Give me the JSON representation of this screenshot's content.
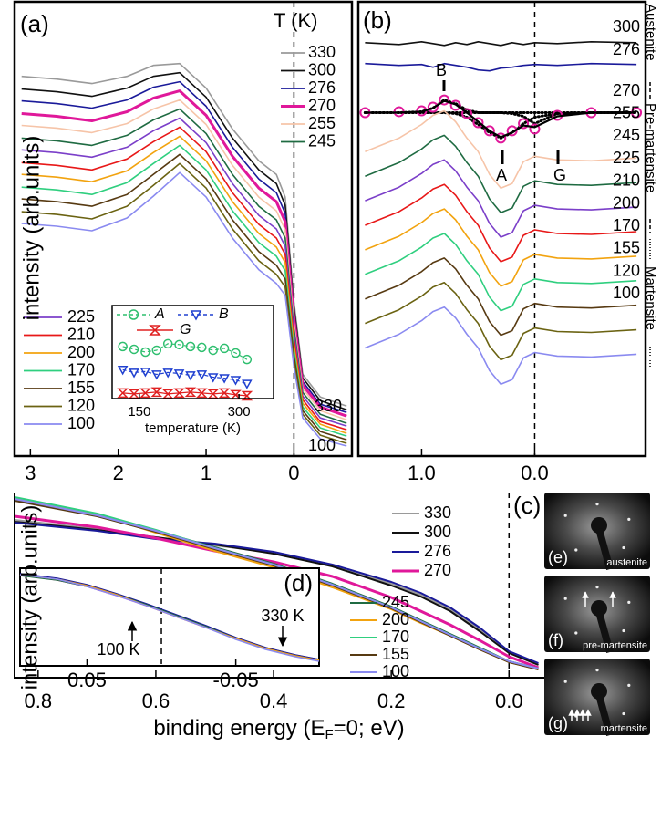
{
  "chart_data": [
    {
      "type": "line",
      "panel_label": "(a)",
      "legend_title": "T (K)",
      "ylabel": "intensity (arb.units)",
      "x": [
        3.1,
        2.7,
        2.3,
        1.9,
        1.6,
        1.3,
        1.0,
        0.7,
        0.4,
        0.2,
        0.1,
        0.0,
        -0.1,
        -0.3,
        -0.6
      ],
      "xlim": [
        3.18,
        -0.66
      ],
      "xticks": [
        3,
        2,
        1,
        0
      ],
      "ylim": [
        0,
        500
      ],
      "vline": 0,
      "series": [
        {
          "name": "330",
          "color": "#9a9a9a",
          "values": [
            418,
            415,
            410,
            418,
            430,
            432,
            405,
            360,
            325,
            310,
            285,
            170,
            90,
            65,
            55
          ]
        },
        {
          "name": "300",
          "color": "#111111",
          "values": [
            404,
            401,
            396,
            405,
            418,
            422,
            395,
            350,
            315,
            300,
            276,
            164,
            86,
            61,
            51
          ]
        },
        {
          "name": "276",
          "color": "#1a1a9a",
          "values": [
            391,
            388,
            383,
            392,
            406,
            412,
            385,
            340,
            305,
            290,
            267,
            158,
            82,
            57,
            48
          ]
        },
        {
          "name": "270",
          "color": "#e0189a",
          "values": [
            377,
            374,
            369,
            379,
            394,
            402,
            375,
            330,
            295,
            280,
            258,
            152,
            78,
            54,
            44
          ]
        },
        {
          "name": "255",
          "color": "#f6c4a8",
          "values": [
            364,
            361,
            356,
            366,
            382,
            392,
            365,
            320,
            285,
            270,
            249,
            146,
            74,
            50,
            40
          ]
        },
        {
          "name": "245",
          "color": "#1f6b42",
          "values": [
            350,
            347,
            342,
            353,
            370,
            382,
            355,
            310,
            275,
            260,
            240,
            140,
            70,
            46,
            36
          ]
        },
        {
          "name": "225",
          "color": "#7b3fc9",
          "values": [
            337,
            334,
            329,
            340,
            358,
            372,
            345,
            300,
            265,
            250,
            231,
            134,
            66,
            42,
            33
          ]
        },
        {
          "name": "210",
          "color": "#e81818",
          "values": [
            323,
            320,
            315,
            327,
            346,
            362,
            335,
            290,
            255,
            240,
            222,
            128,
            62,
            38,
            29
          ]
        },
        {
          "name": "200",
          "color": "#f2a30f",
          "values": [
            310,
            307,
            302,
            314,
            334,
            352,
            325,
            280,
            245,
            230,
            213,
            122,
            58,
            35,
            25
          ]
        },
        {
          "name": "170",
          "color": "#2fcf7f",
          "values": [
            296,
            293,
            288,
            301,
            322,
            342,
            315,
            270,
            235,
            220,
            204,
            116,
            54,
            31,
            22
          ]
        },
        {
          "name": "155",
          "color": "#573a12",
          "values": [
            283,
            280,
            275,
            288,
            310,
            332,
            305,
            260,
            225,
            210,
            195,
            110,
            50,
            27,
            18
          ]
        },
        {
          "name": "120",
          "color": "#6b6312",
          "values": [
            269,
            266,
            261,
            275,
            298,
            322,
            295,
            250,
            215,
            200,
            186,
            104,
            46,
            23,
            14
          ]
        },
        {
          "name": "100",
          "color": "#8a8af0",
          "values": [
            256,
            253,
            248,
            262,
            286,
            312,
            285,
            240,
            205,
            190,
            177,
            98,
            42,
            19,
            11
          ]
        }
      ]
    },
    {
      "type": "scatter",
      "xlabel": "temperature (K)",
      "x": [
        125,
        142,
        159,
        176,
        193,
        210,
        227,
        244,
        261,
        278,
        295,
        312
      ],
      "xlim": [
        109,
        352
      ],
      "xticks": [
        150,
        300
      ],
      "ylim": [
        0,
        10
      ],
      "series": [
        {
          "name": "A",
          "color": "#2fbf6f",
          "marker": "circle",
          "values": [
            5.6,
            5.3,
            5.0,
            5.2,
            5.9,
            5.8,
            5.6,
            5.5,
            5.2,
            5.4,
            4.9,
            4.2
          ]
        },
        {
          "name": "B",
          "color": "#2040d0",
          "marker": "triangle",
          "values": [
            3.1,
            2.8,
            2.9,
            2.6,
            2.8,
            2.7,
            2.5,
            2.6,
            2.3,
            2.2,
            2.0,
            1.6
          ]
        },
        {
          "name": "G",
          "color": "#e02020",
          "marker": "hourglass",
          "values": [
            0.6,
            0.5,
            0.6,
            0.7,
            0.5,
            0.6,
            0.7,
            0.6,
            0.5,
            0.6,
            0.4,
            0.3
          ]
        }
      ]
    },
    {
      "type": "line",
      "panel_label": "(b)",
      "phases": [
        "Austenite",
        "Pre-martensite",
        "Martensite"
      ],
      "annotations": [
        "B",
        "A",
        "G"
      ],
      "x": [
        1.5,
        1.2,
        1.0,
        0.9,
        0.8,
        0.7,
        0.6,
        0.5,
        0.4,
        0.3,
        0.2,
        0.1,
        0.0,
        -0.2,
        -0.5,
        -0.9
      ],
      "xlim": [
        1.56,
        -0.98
      ],
      "xticks": [
        {
          "value": 1,
          "label": "1.0"
        },
        {
          "value": 0,
          "label": "0.0"
        }
      ],
      "ylim": [
        0,
        500
      ],
      "vline": 0,
      "series": [
        {
          "name": "300",
          "color": "#111111",
          "values": [
            455,
            453,
            456,
            454,
            452,
            455,
            453,
            456,
            454,
            452,
            455,
            453,
            455,
            454,
            456,
            455
          ]
        },
        {
          "name": "276",
          "color": "#1a1a9a",
          "values": [
            432,
            430,
            431,
            428,
            432,
            430,
            428,
            425,
            424,
            427,
            428,
            430,
            431,
            430,
            432,
            431
          ]
        },
        {
          "name": "270",
          "color": "#e0189a",
          "marker": "circle",
          "values": [
            378,
            379,
            380,
            384,
            392,
            386,
            377,
            367,
            358,
            350,
            358,
            366,
            360,
            375,
            378,
            378
          ]
        },
        {
          "name": "255",
          "color": "#f6c4a8",
          "values": [
            335,
            350,
            365,
            375,
            380,
            368,
            350,
            335,
            310,
            295,
            300,
            324,
            330,
            326,
            325,
            328
          ]
        },
        {
          "name": "245",
          "color": "#1f6b42",
          "values": [
            308,
            323,
            338,
            348,
            353,
            341,
            323,
            308,
            283,
            268,
            273,
            297,
            303,
            299,
            298,
            301
          ]
        },
        {
          "name": "225",
          "color": "#7b3fc9",
          "values": [
            281,
            296,
            311,
            321,
            326,
            314,
            296,
            281,
            256,
            241,
            246,
            270,
            276,
            272,
            271,
            274
          ]
        },
        {
          "name": "210",
          "color": "#e81818",
          "values": [
            254,
            269,
            284,
            294,
            299,
            287,
            269,
            254,
            229,
            214,
            219,
            243,
            249,
            245,
            244,
            247
          ]
        },
        {
          "name": "200",
          "color": "#f2a30f",
          "values": [
            227,
            242,
            257,
            267,
            272,
            260,
            242,
            227,
            202,
            187,
            192,
            216,
            222,
            218,
            217,
            220
          ]
        },
        {
          "name": "170",
          "color": "#2fcf7f",
          "values": [
            200,
            215,
            230,
            240,
            245,
            233,
            215,
            200,
            175,
            160,
            165,
            189,
            195,
            191,
            190,
            193
          ]
        },
        {
          "name": "155",
          "color": "#573a12",
          "values": [
            173,
            188,
            203,
            213,
            218,
            206,
            188,
            173,
            148,
            133,
            138,
            162,
            168,
            164,
            163,
            166
          ]
        },
        {
          "name": "120",
          "color": "#6b6312",
          "values": [
            146,
            161,
            176,
            186,
            191,
            179,
            161,
            146,
            121,
            106,
            111,
            135,
            141,
            137,
            136,
            139
          ]
        },
        {
          "name": "100",
          "color": "#8a8af0",
          "values": [
            119,
            134,
            149,
            159,
            164,
            152,
            134,
            119,
            94,
            79,
            84,
            108,
            114,
            110,
            109,
            112
          ]
        }
      ],
      "fit": {
        "color": "#000000",
        "values": [
          378,
          378,
          379,
          383,
          391,
          387,
          378,
          368,
          358,
          351,
          356,
          364,
          362,
          374,
          378,
          378
        ]
      },
      "components": [
        {
          "values": [
            378,
            378,
            379,
            383,
            392,
            388,
            381,
            378,
            378,
            378,
            378,
            378,
            378,
            378,
            378,
            378
          ]
        },
        {
          "values": [
            378,
            378,
            378,
            378,
            378,
            377,
            373,
            365,
            356,
            350,
            356,
            366,
            373,
            377,
            378,
            378
          ]
        },
        {
          "values": [
            378,
            378,
            378,
            378,
            378,
            378,
            378,
            378,
            378,
            378,
            377,
            374,
            366,
            377,
            378,
            378
          ]
        }
      ]
    },
    {
      "type": "line",
      "panel_label": "(c)",
      "ylabel": "intensity (arb.units)",
      "xlabel": [
        "binding energy (E",
        "F",
        "=0; eV)"
      ],
      "x": [
        0.84,
        0.7,
        0.6,
        0.5,
        0.4,
        0.3,
        0.2,
        0.15,
        0.1,
        0.05,
        0.0,
        -0.05
      ],
      "xlim": [
        0.84,
        -0.06
      ],
      "xticks": [
        0.8,
        0.6,
        0.4,
        0.2,
        {
          "value": 0,
          "label": "0.0"
        }
      ],
      "ylim": [
        0,
        203
      ],
      "vline": 0,
      "series": [
        {
          "name": "330",
          "color": "#9a9a9a",
          "values": [
            173,
            163,
            153,
            145,
            137,
            123,
            103,
            91,
            75,
            53,
            28,
            15
          ]
        },
        {
          "name": "300",
          "color": "#111111",
          "values": [
            171,
            162,
            154,
            146,
            136,
            122,
            101,
            89,
            73,
            51,
            27,
            14
          ]
        },
        {
          "name": "276",
          "color": "#1a1a9a",
          "values": [
            170,
            161,
            152,
            147,
            138,
            124,
            105,
            93,
            77,
            55,
            29,
            16
          ]
        },
        {
          "name": "270",
          "color": "#e0189a",
          "values": [
            177,
            165,
            153,
            139,
            127,
            111,
            88,
            73,
            58,
            41,
            23,
            11
          ]
        },
        {
          "name": "245",
          "color": "#1f6b42",
          "values": [
            195,
            178,
            161,
            143,
            125,
            103,
            78,
            63,
            48,
            33,
            18,
            10
          ]
        },
        {
          "name": "200",
          "color": "#f2a30f",
          "values": [
            197,
            179,
            159,
            139,
            121,
            99,
            75,
            60,
            46,
            31,
            17,
            9
          ]
        },
        {
          "name": "170",
          "color": "#2fcf7f",
          "values": [
            198,
            180,
            162,
            142,
            124,
            102,
            77,
            62,
            47,
            32,
            18,
            10
          ]
        },
        {
          "name": "155",
          "color": "#573a12",
          "values": [
            194,
            177,
            160,
            141,
            123,
            101,
            76,
            61,
            46,
            31,
            17,
            9
          ]
        },
        {
          "name": "100",
          "color": "#8a8af0",
          "values": [
            196,
            178,
            161,
            142,
            124,
            102,
            77,
            62,
            47,
            32,
            18,
            10
          ]
        }
      ]
    },
    {
      "type": "line",
      "panel_label": "(d)",
      "annotations": [
        "330 K",
        "100 K"
      ],
      "x": [
        0.095,
        0.07,
        0.05,
        0.03,
        0.01,
        -0.01,
        -0.03,
        -0.05,
        -0.07,
        -0.09,
        -0.106
      ],
      "xlim": [
        0.095,
        -0.106
      ],
      "xticks": [
        0.05,
        -0.05
      ],
      "ylim": [
        0,
        107
      ],
      "vline": 0,
      "series": [
        {
          "color": "#9a9a9a",
          "values": [
            100,
            95,
            88,
            78,
            67,
            55,
            43,
            31,
            20,
            12,
            7
          ]
        },
        {
          "color": "#1a1a9a",
          "values": [
            101,
            96,
            89,
            79,
            68,
            56,
            44,
            31,
            20,
            12,
            7
          ]
        },
        {
          "color": "#e0189a",
          "values": [
            100,
            94,
            87,
            77,
            66,
            54,
            42,
            30,
            19,
            11,
            6
          ]
        },
        {
          "color": "#1f6b42",
          "values": [
            99,
            94,
            87,
            78,
            67,
            55,
            43,
            30,
            19,
            11,
            6
          ]
        },
        {
          "color": "#f2a30f",
          "values": [
            100,
            95,
            88,
            78,
            66,
            54,
            42,
            30,
            19,
            11,
            6
          ]
        },
        {
          "color": "#8a8af0",
          "values": [
            100,
            95,
            87,
            77,
            66,
            54,
            42,
            29,
            18,
            10,
            5
          ]
        }
      ]
    }
  ],
  "images": [
    {
      "label": "(e)",
      "caption": "austenite"
    },
    {
      "label": "(f)",
      "caption": "pre-martensite"
    },
    {
      "label": "(g)",
      "caption": "martensite"
    }
  ]
}
